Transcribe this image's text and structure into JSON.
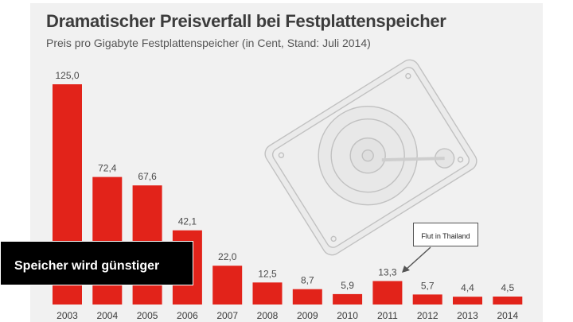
{
  "chart_data": {
    "type": "bar",
    "title": "Dramatischer Preisverfall bei Festplattenspeicher",
    "subtitle": "Preis pro Gigabyte Festplattenspeicher (in Cent, Stand: Juli 2014)",
    "categories": [
      "2003",
      "2004",
      "2005",
      "2006",
      "2007",
      "2008",
      "2009",
      "2010",
      "2011",
      "2012",
      "2013",
      "2014"
    ],
    "values": [
      125.0,
      72.4,
      67.6,
      42.1,
      22.0,
      12.5,
      8.7,
      5.9,
      13.3,
      5.7,
      4.4,
      4.5
    ],
    "value_labels": [
      "125,0",
      "72,4",
      "67,6",
      "42,1",
      "22,0",
      "12,5",
      "8,7",
      "5,9",
      "13,3",
      "5,7",
      "4,4",
      "4,5"
    ],
    "ylim": [
      0,
      125
    ],
    "xlabel": "",
    "ylabel": "",
    "annotations": [
      {
        "text": "Flut in Thailand",
        "category": "2011"
      }
    ]
  },
  "overlay": {
    "banner_text": "Speicher wird günstiger"
  },
  "colors": {
    "bar": "#e2231a",
    "label": "#4a4a4a",
    "axis_label": "#3a3a3a",
    "panel": "#f1f1f1",
    "banner_bg": "#000000"
  },
  "background_icon": "hard-drive-icon"
}
